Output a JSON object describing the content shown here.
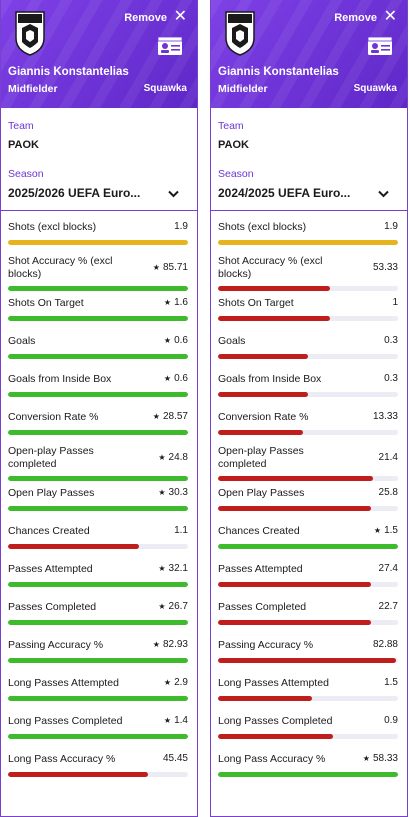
{
  "players": [
    {
      "remove_label": "Remove",
      "close_icon": "close-icon",
      "name": "Giannis Konstantelias",
      "position": "Midfielder",
      "source": "Squawka",
      "team_label": "Team",
      "team": "PAOK",
      "season_label": "Season",
      "season": "2025/2026 UEFA Euro...",
      "stats": [
        {
          "name": "Shots (excl blocks)",
          "value": "1.9",
          "star": false,
          "pct": 100,
          "color": "#e8b41e"
        },
        {
          "name": "Shot Accuracy % (excl blocks)",
          "value": "85.71",
          "star": true,
          "pct": 100,
          "color": "#3dbb2c"
        },
        {
          "name": "Shots On Target",
          "value": "1.6",
          "star": true,
          "pct": 100,
          "color": "#3dbb2c"
        },
        {
          "name": "Goals",
          "value": "0.6",
          "star": true,
          "pct": 100,
          "color": "#3dbb2c"
        },
        {
          "name": "Goals from Inside Box",
          "value": "0.6",
          "star": true,
          "pct": 100,
          "color": "#3dbb2c"
        },
        {
          "name": "Conversion Rate %",
          "value": "28.57",
          "star": true,
          "pct": 100,
          "color": "#3dbb2c"
        },
        {
          "name": "Open-play Passes completed",
          "value": "24.8",
          "star": true,
          "pct": 100,
          "color": "#3dbb2c"
        },
        {
          "name": "Open Play Passes",
          "value": "30.3",
          "star": true,
          "pct": 100,
          "color": "#3dbb2c"
        },
        {
          "name": "Chances Created",
          "value": "1.1",
          "star": false,
          "pct": 73,
          "color": "#c01d1d"
        },
        {
          "name": "Passes Attempted",
          "value": "32.1",
          "star": true,
          "pct": 100,
          "color": "#3dbb2c"
        },
        {
          "name": "Passes Completed",
          "value": "26.7",
          "star": true,
          "pct": 100,
          "color": "#3dbb2c"
        },
        {
          "name": "Passing Accuracy %",
          "value": "82.93",
          "star": true,
          "pct": 100,
          "color": "#3dbb2c"
        },
        {
          "name": "Long Passes Attempted",
          "value": "2.9",
          "star": true,
          "pct": 100,
          "color": "#3dbb2c"
        },
        {
          "name": "Long Passes Completed",
          "value": "1.4",
          "star": true,
          "pct": 100,
          "color": "#3dbb2c"
        },
        {
          "name": "Long Pass Accuracy %",
          "value": "45.45",
          "star": false,
          "pct": 78,
          "color": "#c01d1d"
        }
      ]
    },
    {
      "remove_label": "Remove",
      "close_icon": "close-icon",
      "name": "Giannis Konstantelias",
      "position": "Midfielder",
      "source": "Squawka",
      "team_label": "Team",
      "team": "PAOK",
      "season_label": "Season",
      "season": "2024/2025 UEFA Euro...",
      "stats": [
        {
          "name": "Shots (excl blocks)",
          "value": "1.9",
          "star": false,
          "pct": 100,
          "color": "#e8b41e"
        },
        {
          "name": "Shot Accuracy % (excl blocks)",
          "value": "53.33",
          "star": false,
          "pct": 62,
          "color": "#c01d1d"
        },
        {
          "name": "Shots On Target",
          "value": "1",
          "star": false,
          "pct": 62,
          "color": "#c01d1d"
        },
        {
          "name": "Goals",
          "value": "0.3",
          "star": false,
          "pct": 50,
          "color": "#c01d1d"
        },
        {
          "name": "Goals from Inside Box",
          "value": "0.3",
          "star": false,
          "pct": 50,
          "color": "#c01d1d"
        },
        {
          "name": "Conversion Rate %",
          "value": "13.33",
          "star": false,
          "pct": 47,
          "color": "#c01d1d"
        },
        {
          "name": "Open-play Passes completed",
          "value": "21.4",
          "star": false,
          "pct": 86,
          "color": "#c01d1d"
        },
        {
          "name": "Open Play Passes",
          "value": "25.8",
          "star": false,
          "pct": 85,
          "color": "#c01d1d"
        },
        {
          "name": "Chances Created",
          "value": "1.5",
          "star": true,
          "pct": 100,
          "color": "#3dbb2c"
        },
        {
          "name": "Passes Attempted",
          "value": "27.4",
          "star": false,
          "pct": 85,
          "color": "#c01d1d"
        },
        {
          "name": "Passes Completed",
          "value": "22.7",
          "star": false,
          "pct": 85,
          "color": "#c01d1d"
        },
        {
          "name": "Passing Accuracy %",
          "value": "82.88",
          "star": false,
          "pct": 99,
          "color": "#c01d1d"
        },
        {
          "name": "Long Passes Attempted",
          "value": "1.5",
          "star": false,
          "pct": 52,
          "color": "#c01d1d"
        },
        {
          "name": "Long Passes Completed",
          "value": "0.9",
          "star": false,
          "pct": 64,
          "color": "#c01d1d"
        },
        {
          "name": "Long Pass Accuracy %",
          "value": "58.33",
          "star": true,
          "pct": 100,
          "color": "#3dbb2c"
        }
      ]
    }
  ]
}
